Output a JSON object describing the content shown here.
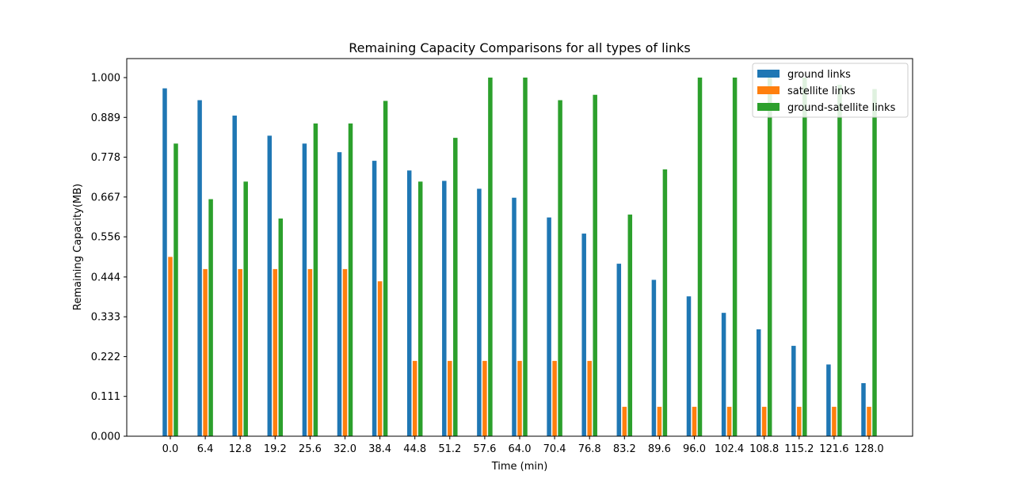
{
  "chart_data": {
    "type": "bar",
    "title": "Remaining Capacity Comparisons for all types of links",
    "xlabel": "Time (min)",
    "ylabel": "Remaining Capacity(MB)",
    "categories": [
      "0.0",
      "6.4",
      "12.8",
      "19.2",
      "25.6",
      "32.0",
      "38.4",
      "44.8",
      "51.2",
      "57.6",
      "64.0",
      "70.4",
      "76.8",
      "83.2",
      "89.6",
      "96.0",
      "102.4",
      "108.8",
      "115.2",
      "121.6",
      "128.0"
    ],
    "yticks": [
      "0.000",
      "0.111",
      "0.222",
      "0.333",
      "0.444",
      "0.556",
      "0.667",
      "0.778",
      "0.889",
      "1.000"
    ],
    "ylim": [
      0,
      1.05
    ],
    "grid": false,
    "legend_position": "upper right",
    "series": [
      {
        "name": "ground links",
        "color": "#1f77b4",
        "values": [
          0.97,
          0.937,
          0.894,
          0.838,
          0.816,
          0.792,
          0.768,
          0.741,
          0.712,
          0.69,
          0.665,
          0.61,
          0.565,
          0.481,
          0.436,
          0.39,
          0.344,
          0.298,
          0.252,
          0.2,
          0.148
        ]
      },
      {
        "name": "satellite links",
        "color": "#ff7f0e",
        "values": [
          0.5,
          0.466,
          0.466,
          0.466,
          0.466,
          0.466,
          0.432,
          0.21,
          0.21,
          0.21,
          0.21,
          0.21,
          0.21,
          0.082,
          0.082,
          0.082,
          0.082,
          0.082,
          0.082,
          0.082,
          0.082
        ]
      },
      {
        "name": "ground-satellite links",
        "color": "#2ca02c",
        "values": [
          0.816,
          0.661,
          0.71,
          0.607,
          0.872,
          0.872,
          0.935,
          0.71,
          0.832,
          1.0,
          1.0,
          0.937,
          0.952,
          0.618,
          0.744,
          1.0,
          1.0,
          1.0,
          1.0,
          0.98,
          0.968
        ]
      }
    ]
  }
}
